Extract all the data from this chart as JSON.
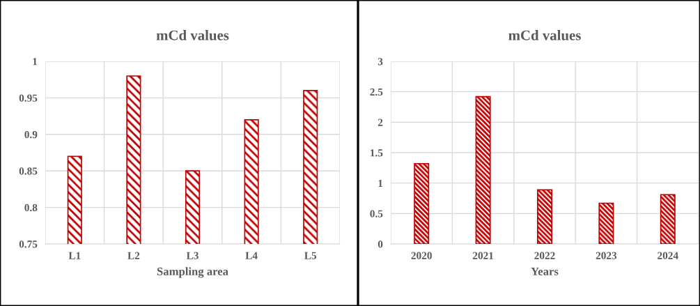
{
  "chart_data": [
    {
      "type": "bar",
      "title": "mCd values",
      "xlabel": "Sampling area",
      "categories": [
        "L1",
        "L2",
        "L3",
        "L4",
        "L5"
      ],
      "values": [
        0.87,
        0.98,
        0.85,
        0.92,
        0.96
      ],
      "color": "#c00000",
      "ylim": [
        0.75,
        1
      ],
      "yticks": [
        0.75,
        0.8,
        0.85,
        0.9,
        0.95,
        1
      ],
      "grid": true
    },
    {
      "type": "bar",
      "title": "mCd values",
      "xlabel": "Years",
      "categories": [
        "2020",
        "2021",
        "2022",
        "2023",
        "2024"
      ],
      "values": [
        1.32,
        2.42,
        0.89,
        0.67,
        0.81
      ],
      "color": "#c00000",
      "ylim": [
        0,
        3
      ],
      "yticks": [
        0,
        0.5,
        1,
        1.5,
        2,
        2.5,
        3
      ],
      "grid": true
    }
  ]
}
